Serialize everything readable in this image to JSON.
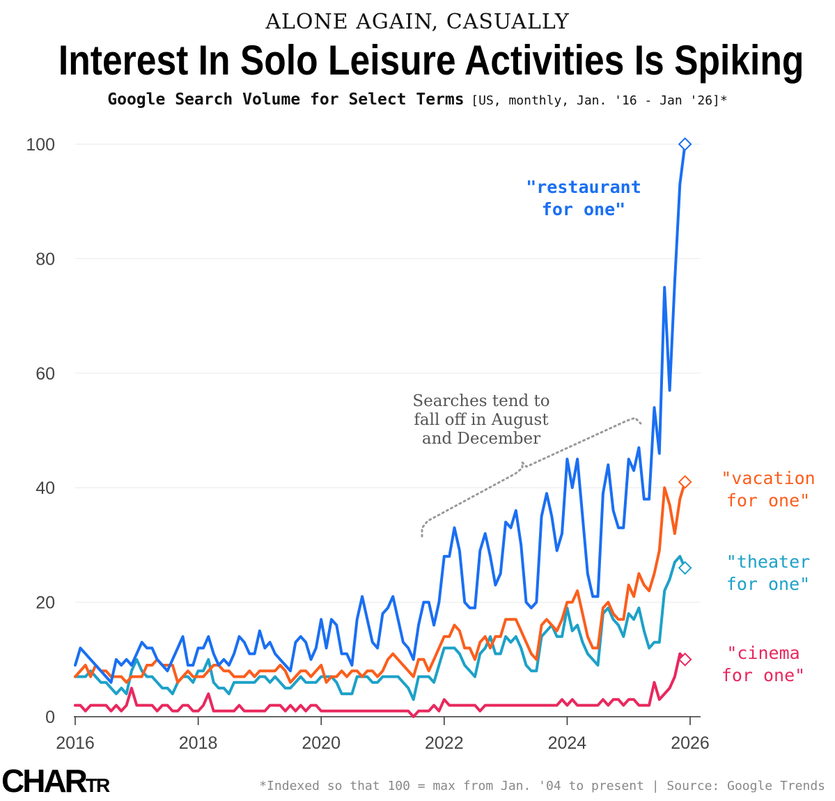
{
  "header": {
    "kicker": "ALONE AGAIN, CASUALLY",
    "title": "Interest In Solo Leisure Activities Is Spiking",
    "subtitle": "Google Search Volume for Select Terms",
    "subtitle_detail": "[US, monthly, Jan. '16 - Jan '26]*"
  },
  "footer": {
    "brand_big": "CHAR",
    "brand_small": "TR",
    "note": "*Indexed so that 100 = max from Jan. '04 to present | Source: Google Trends"
  },
  "annotation": {
    "lines": [
      "Searches tend to",
      "fall off in August",
      "and December"
    ]
  },
  "colors": {
    "restaurant": "#1a6ff2",
    "vacation": "#fb5e1d",
    "theater": "#1da1c8",
    "cinema": "#e8285e",
    "grid": "#e9e9e9",
    "axis_text": "#444444"
  },
  "chart_data": {
    "type": "line",
    "x_start": "2016-01",
    "x_step": "monthly",
    "xlim": [
      2016,
      2026
    ],
    "ylim": [
      0,
      100
    ],
    "xticks": [
      "2016",
      "2018",
      "2020",
      "2022",
      "2024",
      "2026"
    ],
    "yticks": [
      "0",
      "20",
      "40",
      "60",
      "80",
      "100"
    ],
    "grid": true,
    "series": [
      {
        "key": "restaurant",
        "label_lines": [
          "\"restaurant",
          "for one\""
        ],
        "values": [
          9,
          12,
          11,
          10,
          9,
          8,
          7,
          6,
          10,
          9,
          10,
          9,
          11,
          13,
          12,
          12,
          10,
          9,
          8,
          10,
          12,
          14,
          9,
          9,
          12,
          12,
          14,
          11,
          9,
          10,
          9,
          11,
          14,
          13,
          11,
          11,
          15,
          12,
          13,
          11,
          10,
          9,
          8,
          13,
          14,
          13,
          10,
          12,
          17,
          12,
          17,
          16,
          11,
          11,
          9,
          17,
          21,
          17,
          13,
          12,
          18,
          19,
          21,
          17,
          13,
          12,
          10,
          16,
          20,
          20,
          16,
          20,
          28,
          28,
          33,
          29,
          20,
          19,
          19,
          29,
          32,
          28,
          23,
          25,
          34,
          33,
          36,
          30,
          20,
          19,
          20,
          35,
          39,
          35,
          29,
          32,
          45,
          40,
          45,
          35,
          25,
          21,
          21,
          39,
          44,
          36,
          33,
          33,
          45,
          43,
          47,
          38,
          38,
          54,
          46,
          75,
          57,
          76,
          93,
          100
        ]
      },
      {
        "key": "vacation",
        "label_lines": [
          "\"vacation",
          "for one\""
        ],
        "values": [
          7,
          8,
          9,
          7,
          9,
          8,
          8,
          7,
          7,
          7,
          6,
          7,
          7,
          7,
          9,
          9,
          10,
          9,
          9,
          9,
          6,
          7,
          8,
          7,
          7,
          7,
          8,
          9,
          9,
          8,
          8,
          7,
          7,
          7,
          8,
          7,
          8,
          8,
          8,
          8,
          9,
          8,
          6,
          7,
          8,
          8,
          7,
          8,
          9,
          6,
          7,
          7,
          8,
          7,
          8,
          8,
          7,
          8,
          8,
          7,
          8,
          10,
          11,
          10,
          9,
          8,
          7,
          10,
          10,
          8,
          10,
          12,
          14,
          14,
          16,
          15,
          12,
          12,
          10,
          13,
          14,
          12,
          14,
          14,
          17,
          17,
          17,
          15,
          13,
          11,
          10,
          16,
          17,
          16,
          15,
          17,
          20,
          20,
          22,
          18,
          14,
          12,
          12,
          19,
          20,
          18,
          17,
          17,
          23,
          21,
          25,
          23,
          22,
          25,
          29,
          40,
          37,
          32,
          38,
          41
        ]
      },
      {
        "key": "theater",
        "label_lines": [
          "\"theater",
          "for one\""
        ],
        "values": [
          7,
          7,
          7,
          8,
          7,
          6,
          6,
          5,
          4,
          5,
          4,
          8,
          10,
          8,
          7,
          7,
          6,
          5,
          5,
          4,
          6,
          7,
          7,
          6,
          8,
          8,
          10,
          6,
          5,
          5,
          4,
          6,
          6,
          6,
          6,
          6,
          7,
          7,
          6,
          7,
          6,
          5,
          5,
          6,
          7,
          6,
          6,
          6,
          7,
          7,
          7,
          6,
          4,
          4,
          4,
          7,
          7,
          7,
          6,
          6,
          7,
          7,
          7,
          7,
          6,
          5,
          3,
          7,
          7,
          7,
          6,
          9,
          12,
          12,
          12,
          11,
          9,
          8,
          7,
          11,
          12,
          14,
          11,
          11,
          14,
          13,
          14,
          12,
          9,
          8,
          8,
          14,
          15,
          16,
          14,
          14,
          19,
          15,
          16,
          13,
          11,
          10,
          9,
          18,
          19,
          17,
          16,
          14,
          18,
          17,
          19,
          15,
          12,
          13,
          13,
          22,
          24,
          27,
          28,
          26
        ]
      },
      {
        "key": "cinema",
        "label_lines": [
          "\"cinema",
          "for one\""
        ],
        "values": [
          2,
          2,
          1,
          2,
          2,
          2,
          2,
          1,
          2,
          1,
          2,
          5,
          2,
          2,
          2,
          2,
          1,
          2,
          2,
          1,
          1,
          2,
          2,
          1,
          1,
          2,
          4,
          1,
          1,
          1,
          1,
          1,
          2,
          1,
          1,
          1,
          1,
          1,
          2,
          2,
          2,
          1,
          2,
          1,
          2,
          1,
          2,
          2,
          1,
          1,
          1,
          1,
          1,
          1,
          1,
          1,
          1,
          1,
          1,
          1,
          1,
          1,
          1,
          1,
          1,
          1,
          0,
          1,
          1,
          1,
          2,
          1,
          3,
          2,
          2,
          2,
          2,
          2,
          2,
          1,
          2,
          2,
          2,
          2,
          2,
          2,
          2,
          2,
          2,
          2,
          2,
          2,
          2,
          2,
          2,
          3,
          2,
          3,
          2,
          2,
          2,
          2,
          2,
          3,
          2,
          3,
          3,
          2,
          3,
          3,
          2,
          2,
          2,
          6,
          3,
          4,
          5,
          7,
          11,
          10
        ]
      }
    ]
  }
}
